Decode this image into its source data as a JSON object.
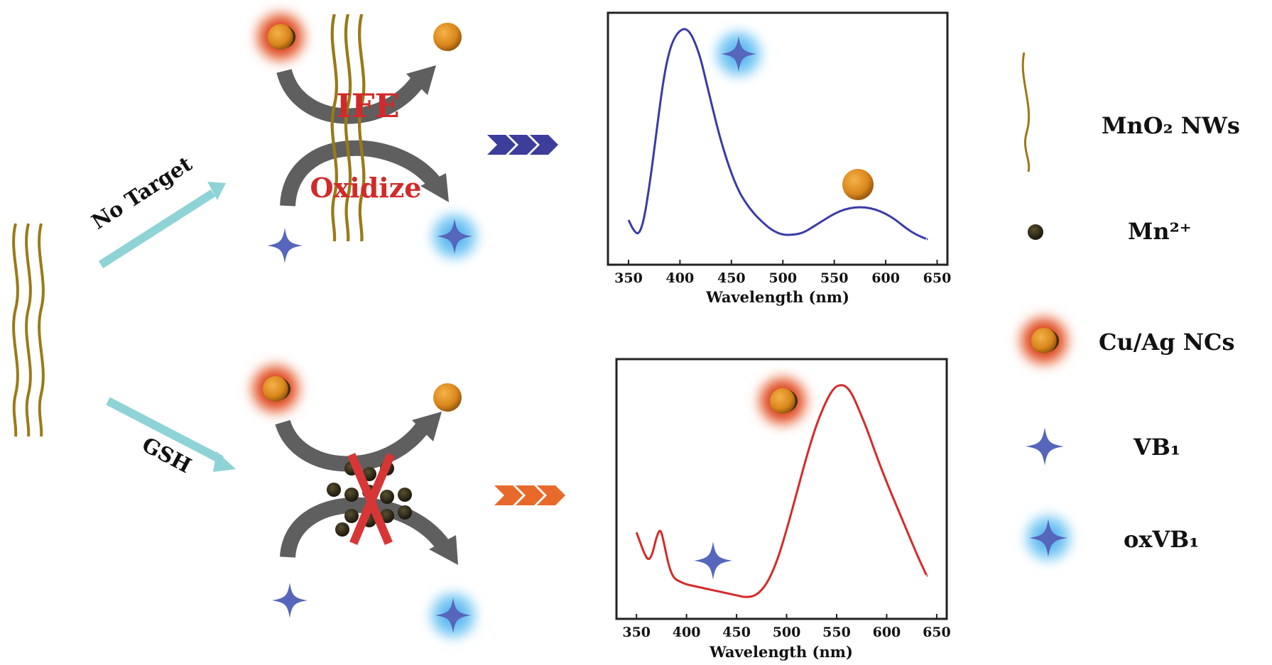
{
  "labels": {
    "no_target": "No Target",
    "gsh": "GSH",
    "ife": "IFE",
    "oxidize": "Oxidize"
  },
  "legend": {
    "nanowire": "MnO₂ NWs",
    "mn_ion": "Mn²⁺",
    "cluster": "Cu/Ag NCs",
    "vb1": "VB₁",
    "oxvb1": "oxVB₁"
  },
  "colors": {
    "nanowire": "#9a7a18",
    "arrow_cyan": "#8fd3d6",
    "mech_arrow": "#5f5f5f",
    "mech_text": "#d22a2a",
    "chevron_top": "#3d3d9c",
    "chevron_bottom": "#e86a2a",
    "curve_top": "#3a3aa8",
    "curve_bottom": "#d62a2a",
    "star": "#5566bb",
    "glow_blue": "#4fb6f0",
    "glow_orange": "#e9521b",
    "cluster_core": "#d98a1c",
    "mn_dot": "#2a2416",
    "cross": "#d83636"
  },
  "chart_data": [
    {
      "type": "line",
      "xlabel": "Wavelength (nm)",
      "ylabel": "",
      "xlim": [
        330,
        660
      ],
      "ylim": [
        0,
        1
      ],
      "xticks": [
        350,
        400,
        450,
        500,
        550,
        600,
        650
      ],
      "series": [
        {
          "x": [
            350,
            355,
            360,
            365,
            370,
            375,
            380,
            385,
            390,
            395,
            400,
            405,
            410,
            415,
            420,
            425,
            430,
            435,
            440,
            445,
            450,
            455,
            460,
            470,
            480,
            490,
            500,
            510,
            520,
            530,
            540,
            550,
            560,
            570,
            580,
            590,
            600,
            610,
            620,
            630,
            640
          ],
          "y": [
            0.1,
            0.05,
            0.03,
            0.1,
            0.25,
            0.43,
            0.62,
            0.79,
            0.9,
            0.96,
            0.99,
            1.0,
            0.98,
            0.93,
            0.86,
            0.76,
            0.66,
            0.56,
            0.47,
            0.39,
            0.32,
            0.26,
            0.21,
            0.14,
            0.09,
            0.05,
            0.03,
            0.03,
            0.04,
            0.07,
            0.1,
            0.13,
            0.15,
            0.16,
            0.16,
            0.15,
            0.13,
            0.1,
            0.06,
            0.03,
            0.01
          ]
        }
      ]
    },
    {
      "type": "line",
      "xlabel": "Wavelength (nm)",
      "ylabel": "",
      "xlim": [
        330,
        660
      ],
      "ylim": [
        0,
        1
      ],
      "xticks": [
        350,
        400,
        450,
        500,
        550,
        600,
        650
      ],
      "series": [
        {
          "x": [
            350,
            354,
            358,
            362,
            366,
            370,
            374,
            378,
            382,
            386,
            390,
            395,
            400,
            410,
            420,
            430,
            440,
            450,
            460,
            470,
            480,
            490,
            500,
            510,
            520,
            530,
            540,
            548,
            555,
            560,
            565,
            570,
            580,
            590,
            600,
            610,
            620,
            630,
            640
          ],
          "y": [
            0.32,
            0.27,
            0.22,
            0.19,
            0.22,
            0.3,
            0.34,
            0.26,
            0.17,
            0.12,
            0.1,
            0.09,
            0.08,
            0.07,
            0.06,
            0.05,
            0.04,
            0.03,
            0.02,
            0.03,
            0.08,
            0.18,
            0.33,
            0.5,
            0.67,
            0.82,
            0.93,
            0.99,
            1.0,
            0.99,
            0.96,
            0.91,
            0.8,
            0.67,
            0.55,
            0.44,
            0.33,
            0.22,
            0.12
          ]
        }
      ]
    }
  ]
}
